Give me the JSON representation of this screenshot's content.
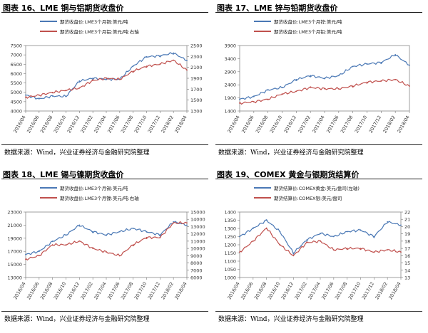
{
  "source_text": "数据来源：Wind，兴业证券经济与金融研究院整理",
  "colors": {
    "blue": "#4a78b5",
    "red": "#c0504d"
  },
  "x_labels": [
    "2016/04",
    "2016/06",
    "2016/08",
    "2016/10",
    "2016/12",
    "2017/02",
    "2017/04",
    "2017/06",
    "2017/08",
    "2017/10",
    "2017/12",
    "2018/02",
    "2018/04"
  ],
  "chart_data": [
    {
      "type": "line",
      "title": "图表 16、LME 铜与铝期货收盘价",
      "categories": [
        "2016/04",
        "2016/06",
        "2016/08",
        "2016/10",
        "2016/12",
        "2017/02",
        "2017/04",
        "2017/06",
        "2017/08",
        "2017/10",
        "2017/12",
        "2018/02",
        "2018/04"
      ],
      "ylim": [
        4000,
        7500
      ],
      "yticks": [
        4000,
        4500,
        5000,
        5500,
        6000,
        6500,
        7000,
        7500
      ],
      "y2lim": [
        1300,
        2500
      ],
      "y2ticks": [
        1300,
        1500,
        1700,
        1900,
        2100,
        2300,
        2500
      ],
      "series": [
        {
          "name": "期货收盘价:LME3个月铜:美元/吨",
          "color": "#4a78b5",
          "axis": "left",
          "values": [
            4850,
            4650,
            4800,
            4780,
            5600,
            5750,
            5700,
            5700,
            6400,
            6900,
            6950,
            7100,
            6700
          ]
        },
        {
          "name": "期货收盘价:LME3个月铝:美元/吨:右轴",
          "color": "#c0504d",
          "axis": "right",
          "values": [
            1550,
            1590,
            1640,
            1680,
            1720,
            1860,
            1900,
            1880,
            2030,
            2120,
            2160,
            2230,
            2050
          ]
        }
      ]
    },
    {
      "type": "line",
      "title": "图表 17、LME 锌与铅期货收盘价",
      "categories": [
        "2016/04",
        "2016/06",
        "2016/08",
        "2016/10",
        "2016/12",
        "2017/02",
        "2017/04",
        "2017/06",
        "2017/08",
        "2017/10",
        "2017/12",
        "2018/02",
        "2018/04"
      ],
      "ylim": [
        1400,
        3900
      ],
      "yticks": [
        1400,
        1900,
        2400,
        2900,
        3400,
        3900
      ],
      "series": [
        {
          "name": "期货收盘价:LME3个月锌:美元/吨",
          "color": "#4a78b5",
          "axis": "left",
          "values": [
            1850,
            1950,
            2200,
            2300,
            2600,
            2750,
            2650,
            2750,
            3100,
            3200,
            3250,
            3550,
            3150
          ]
        },
        {
          "name": "期货收盘价:LME3个月铅:美元/吨",
          "color": "#c0504d",
          "axis": "left",
          "values": [
            1700,
            1750,
            1850,
            2050,
            2150,
            2300,
            2250,
            2250,
            2350,
            2500,
            2550,
            2600,
            2350
          ]
        }
      ]
    },
    {
      "type": "line",
      "title": "图表 18、LME 锡与镍期货收盘价",
      "categories": [
        "2016/04",
        "2016/06",
        "2016/08",
        "2016/10",
        "2016/12",
        "2017/02",
        "2017/04",
        "2017/06",
        "2017/08",
        "2017/10",
        "2017/12",
        "2018/02",
        "2018/04"
      ],
      "ylim": [
        13000,
        23000
      ],
      "yticks": [
        13000,
        15000,
        17000,
        19000,
        21000,
        23000
      ],
      "y2lim": [
        6000,
        15000
      ],
      "y2ticks": [
        6000,
        7000,
        8000,
        9000,
        10000,
        11000,
        12000,
        13000,
        14000,
        15000
      ],
      "series": [
        {
          "name": "期货收盘价:LME3个月锡:美元/吨",
          "color": "#4a78b5",
          "axis": "left",
          "values": [
            16500,
            17000,
            18500,
            19500,
            21000,
            20000,
            19500,
            20000,
            20500,
            20000,
            19500,
            21500,
            21000
          ]
        },
        {
          "name": "期货收盘价:LME3个月镍:美元/吨:右轴",
          "color": "#c0504d",
          "axis": "right",
          "values": [
            8500,
            9000,
            10500,
            10500,
            11000,
            10000,
            9500,
            9000,
            10500,
            11500,
            11500,
            13500,
            13500
          ]
        }
      ]
    },
    {
      "type": "line",
      "title": "图表 19、COMEX 黄金与银期货结算价",
      "categories": [
        "2016/04",
        "2016/06",
        "2016/08",
        "2016/10",
        "2016/12",
        "2017/02",
        "2017/04",
        "2017/06",
        "2017/08",
        "2017/10",
        "2017/12",
        "2018/02",
        "2018/04"
      ],
      "ylim": [
        1000,
        1400
      ],
      "yticks": [
        1000,
        1050,
        1100,
        1150,
        1200,
        1250,
        1300,
        1350,
        1400
      ],
      "y2lim": [
        13,
        22
      ],
      "y2ticks": [
        13,
        14,
        15,
        16,
        17,
        18,
        19,
        20,
        21,
        22
      ],
      "series": [
        {
          "name": "期货结算价:COMEX黄金:美元/盎司(左轴)",
          "color": "#4a78b5",
          "axis": "left",
          "values": [
            1250,
            1300,
            1350,
            1280,
            1150,
            1230,
            1270,
            1250,
            1280,
            1290,
            1250,
            1340,
            1320
          ]
        },
        {
          "name": "期货结算价:COMEX银:美元/盎司",
          "color": "#c0504d",
          "axis": "right",
          "values": [
            16.5,
            18.0,
            19.8,
            17.5,
            16.0,
            17.8,
            18.0,
            16.8,
            17.0,
            17.0,
            16.5,
            16.8,
            16.5
          ]
        }
      ]
    }
  ]
}
